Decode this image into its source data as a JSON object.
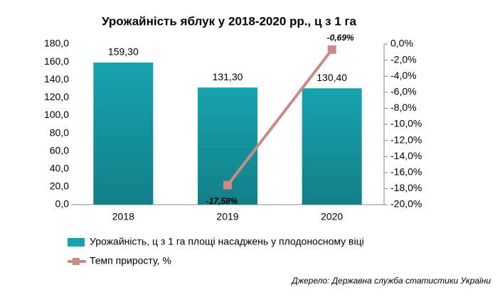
{
  "chart_data": {
    "type": "bar",
    "title": "Урожайність яблук у 2018-2020 рр., ц з 1 га",
    "categories": [
      "2018",
      "2019",
      "2020"
    ],
    "series": [
      {
        "name": "Урожайність, ц з 1 га площі  насаджень у плодоносному  віці",
        "type": "bar",
        "color": "#17a3ae",
        "values": [
          159.3,
          131.3,
          130.4
        ],
        "value_labels": [
          "159,30",
          "131,30",
          "130,40"
        ]
      },
      {
        "name": "Темп приросту, %",
        "type": "line",
        "axis": "y2",
        "color": "#c78c86",
        "values": [
          null,
          -17.58,
          -0.69
        ],
        "value_labels": [
          null,
          "-17,58%",
          "-0,69%"
        ]
      }
    ],
    "ylim": [
      0,
      180
    ],
    "yticks": [
      {
        "value": 0,
        "label": "0,0"
      },
      {
        "value": 20,
        "label": "20,0"
      },
      {
        "value": 40,
        "label": "40,0"
      },
      {
        "value": 60,
        "label": "60,0"
      },
      {
        "value": 80,
        "label": "80,0"
      },
      {
        "value": 100,
        "label": "100,0"
      },
      {
        "value": 120,
        "label": "120,0"
      },
      {
        "value": 140,
        "label": "140,0"
      },
      {
        "value": 160,
        "label": "160,0"
      },
      {
        "value": 180,
        "label": "180,0"
      }
    ],
    "y2lim": [
      -20,
      0
    ],
    "y2ticks": [
      {
        "value": 0,
        "label": "0,0%"
      },
      {
        "value": -2,
        "label": "-2,0%"
      },
      {
        "value": -4,
        "label": "-4,0%"
      },
      {
        "value": -6,
        "label": "-6,0%"
      },
      {
        "value": -8,
        "label": "-8,0%"
      },
      {
        "value": -10,
        "label": "-10,0%"
      },
      {
        "value": -12,
        "label": "-12,0%"
      },
      {
        "value": -14,
        "label": "-14,0%"
      },
      {
        "value": -16,
        "label": "-16,0%"
      },
      {
        "value": -18,
        "label": "-18,0%"
      },
      {
        "value": -20,
        "label": "-20,0%"
      }
    ],
    "grid": false,
    "source": "Джерело: Державна служба статистики України"
  }
}
